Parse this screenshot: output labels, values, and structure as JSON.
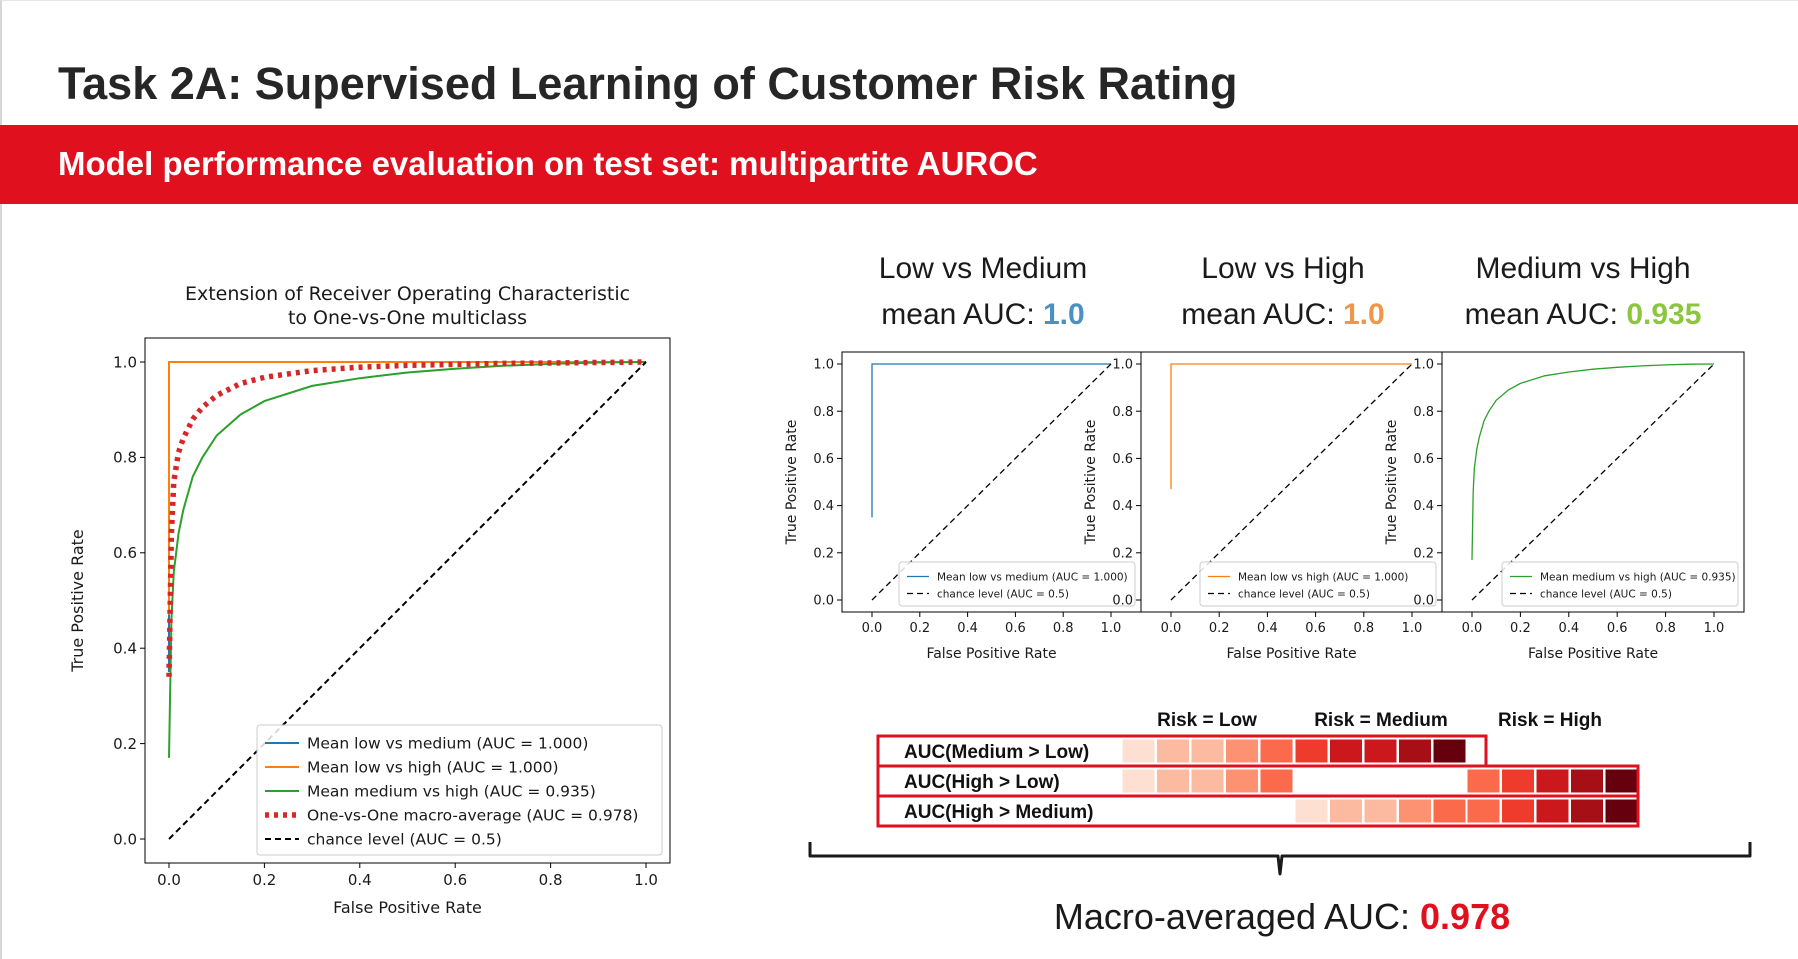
{
  "slide": {
    "title": "Task 2A: Supervised Learning of Customer Risk Rating",
    "subtitle": "Model performance evaluation on test set: multipartite AUROC"
  },
  "colors": {
    "banner": "#e1101f",
    "low_medium": "#1f77b4",
    "low_high": "#ff7f0e",
    "medium_high": "#2ca02c",
    "macro": "#d62728",
    "macro_value": "#e1101f",
    "value_blue": "#4a90c2",
    "value_orange": "#f0964a",
    "value_green": "#8cc63f"
  },
  "pair_headings": [
    {
      "line1": "Low vs Medium",
      "prefix": "mean AUC: ",
      "value": "1.0",
      "color": "#4a90c2"
    },
    {
      "line1": "Low vs High",
      "prefix": "mean AUC: ",
      "value": "1.0",
      "color": "#f0964a"
    },
    {
      "line1": "Medium vs High",
      "prefix": "mean AUC: ",
      "value": "0.935",
      "color": "#8cc63f"
    }
  ],
  "risk_table": {
    "headers": [
      "Risk = Low",
      "Risk = Medium",
      "Risk = High"
    ],
    "rows": [
      {
        "label": "AUC(Medium > Low)",
        "cols": [
          "Low",
          "Medium"
        ]
      },
      {
        "label": "AUC(High > Low)",
        "cols": [
          "Low",
          "High"
        ]
      },
      {
        "label": "AUC(High > Medium)",
        "cols": [
          "Medium",
          "High"
        ]
      }
    ],
    "shade_ramp": [
      "#fde0d2",
      "#fcbba1",
      "#fc9272",
      "#fb6a4a",
      "#ef3b2c",
      "#cb181d",
      "#a50f15",
      "#67000d"
    ]
  },
  "macro": {
    "prefix": "Macro-averaged AUC: ",
    "value": "0.978"
  },
  "chart_data": [
    {
      "type": "line",
      "title": "Extension of Receiver Operating Characteristic\nto One-vs-One multiclass",
      "xlabel": "False Positive Rate",
      "ylabel": "True Positive Rate",
      "xlim": [
        0.0,
        1.0
      ],
      "ylim": [
        0.0,
        1.0
      ],
      "xticks": [
        "0.0",
        "0.2",
        "0.4",
        "0.6",
        "0.8",
        "1.0"
      ],
      "yticks": [
        "0.0",
        "0.2",
        "0.4",
        "0.6",
        "0.8",
        "1.0"
      ],
      "grid": false,
      "legend_position": "lower-right",
      "series": [
        {
          "name": "Mean low vs medium (AUC = 1.000)",
          "color": "#1f77b4",
          "style": "solid",
          "x": [
            0.0,
            0.0,
            1.0
          ],
          "y": [
            0.35,
            1.0,
            1.0
          ]
        },
        {
          "name": "Mean low vs high (AUC = 1.000)",
          "color": "#ff7f0e",
          "style": "solid",
          "x": [
            0.0,
            0.0,
            1.0
          ],
          "y": [
            0.47,
            1.0,
            1.0
          ]
        },
        {
          "name": "Mean medium vs high (AUC = 0.935)",
          "color": "#2ca02c",
          "style": "solid",
          "x": [
            0.0,
            0.005,
            0.01,
            0.02,
            0.03,
            0.05,
            0.07,
            0.1,
            0.15,
            0.2,
            0.3,
            0.4,
            0.5,
            0.6,
            0.7,
            0.8,
            0.9,
            1.0
          ],
          "y": [
            0.17,
            0.46,
            0.56,
            0.64,
            0.69,
            0.76,
            0.8,
            0.846,
            0.89,
            0.918,
            0.95,
            0.966,
            0.978,
            0.986,
            0.992,
            0.996,
            0.999,
            1.0
          ]
        },
        {
          "name": "One-vs-One macro-average (AUC = 0.978)",
          "color": "#d62728",
          "style": "dotted",
          "x": [
            0.0,
            0.005,
            0.01,
            0.02,
            0.03,
            0.05,
            0.07,
            0.1,
            0.15,
            0.2,
            0.3,
            0.4,
            0.5,
            0.6,
            0.7,
            0.8,
            0.9,
            1.0
          ],
          "y": [
            0.34,
            0.64,
            0.75,
            0.81,
            0.84,
            0.88,
            0.905,
            0.93,
            0.955,
            0.968,
            0.982,
            0.989,
            0.993,
            0.995,
            0.997,
            0.998,
            0.999,
            1.0
          ]
        },
        {
          "name": "chance level (AUC = 0.5)",
          "color": "#000000",
          "style": "dashed",
          "x": [
            0.0,
            1.0
          ],
          "y": [
            0.0,
            1.0
          ]
        }
      ]
    },
    {
      "type": "line",
      "xlabel": "False Positive Rate",
      "ylabel": "True Positive Rate",
      "xlim": [
        0.0,
        1.0
      ],
      "ylim": [
        0.0,
        1.0
      ],
      "xticks": [
        "0.0",
        "0.2",
        "0.4",
        "0.6",
        "0.8",
        "1.0"
      ],
      "yticks": [
        "0.0",
        "0.2",
        "0.4",
        "0.6",
        "0.8",
        "1.0"
      ],
      "legend_position": "lower-right",
      "series": [
        {
          "name": "Mean low vs medium (AUC = 1.000)",
          "color": "#1f77b4",
          "style": "solid",
          "x": [
            0.0,
            0.0,
            1.0
          ],
          "y": [
            0.35,
            1.0,
            1.0
          ]
        },
        {
          "name": "chance level (AUC = 0.5)",
          "color": "#000000",
          "style": "dashed",
          "x": [
            0.0,
            1.0
          ],
          "y": [
            0.0,
            1.0
          ]
        }
      ]
    },
    {
      "type": "line",
      "xlabel": "False Positive Rate",
      "ylabel": "True Positive Rate",
      "xlim": [
        0.0,
        1.0
      ],
      "ylim": [
        0.0,
        1.0
      ],
      "xticks": [
        "0.0",
        "0.2",
        "0.4",
        "0.6",
        "0.8",
        "1.0"
      ],
      "yticks": [
        "0.0",
        "0.2",
        "0.4",
        "0.6",
        "0.8",
        "1.0"
      ],
      "legend_position": "lower-right",
      "series": [
        {
          "name": "Mean low vs high (AUC = 1.000)",
          "color": "#ff7f0e",
          "style": "solid",
          "x": [
            0.0,
            0.0,
            1.0
          ],
          "y": [
            0.47,
            1.0,
            1.0
          ]
        },
        {
          "name": "chance level (AUC = 0.5)",
          "color": "#000000",
          "style": "dashed",
          "x": [
            0.0,
            1.0
          ],
          "y": [
            0.0,
            1.0
          ]
        }
      ]
    },
    {
      "type": "line",
      "xlabel": "False Positive Rate",
      "ylabel": "True Positive Rate",
      "xlim": [
        0.0,
        1.0
      ],
      "ylim": [
        0.0,
        1.0
      ],
      "xticks": [
        "0.0",
        "0.2",
        "0.4",
        "0.6",
        "0.8",
        "1.0"
      ],
      "yticks": [
        "0.0",
        "0.2",
        "0.4",
        "0.6",
        "0.8",
        "1.0"
      ],
      "legend_position": "lower-right",
      "series": [
        {
          "name": "Mean medium vs high (AUC = 0.935)",
          "color": "#2ca02c",
          "style": "solid",
          "x": [
            0.0,
            0.005,
            0.01,
            0.02,
            0.03,
            0.05,
            0.07,
            0.1,
            0.15,
            0.2,
            0.3,
            0.4,
            0.5,
            0.6,
            0.7,
            0.8,
            0.9,
            1.0
          ],
          "y": [
            0.17,
            0.46,
            0.56,
            0.64,
            0.69,
            0.76,
            0.8,
            0.846,
            0.89,
            0.918,
            0.95,
            0.966,
            0.978,
            0.986,
            0.992,
            0.996,
            0.999,
            1.0
          ]
        },
        {
          "name": "chance level (AUC = 0.5)",
          "color": "#000000",
          "style": "dashed",
          "x": [
            0.0,
            1.0
          ],
          "y": [
            0.0,
            1.0
          ]
        }
      ]
    }
  ]
}
